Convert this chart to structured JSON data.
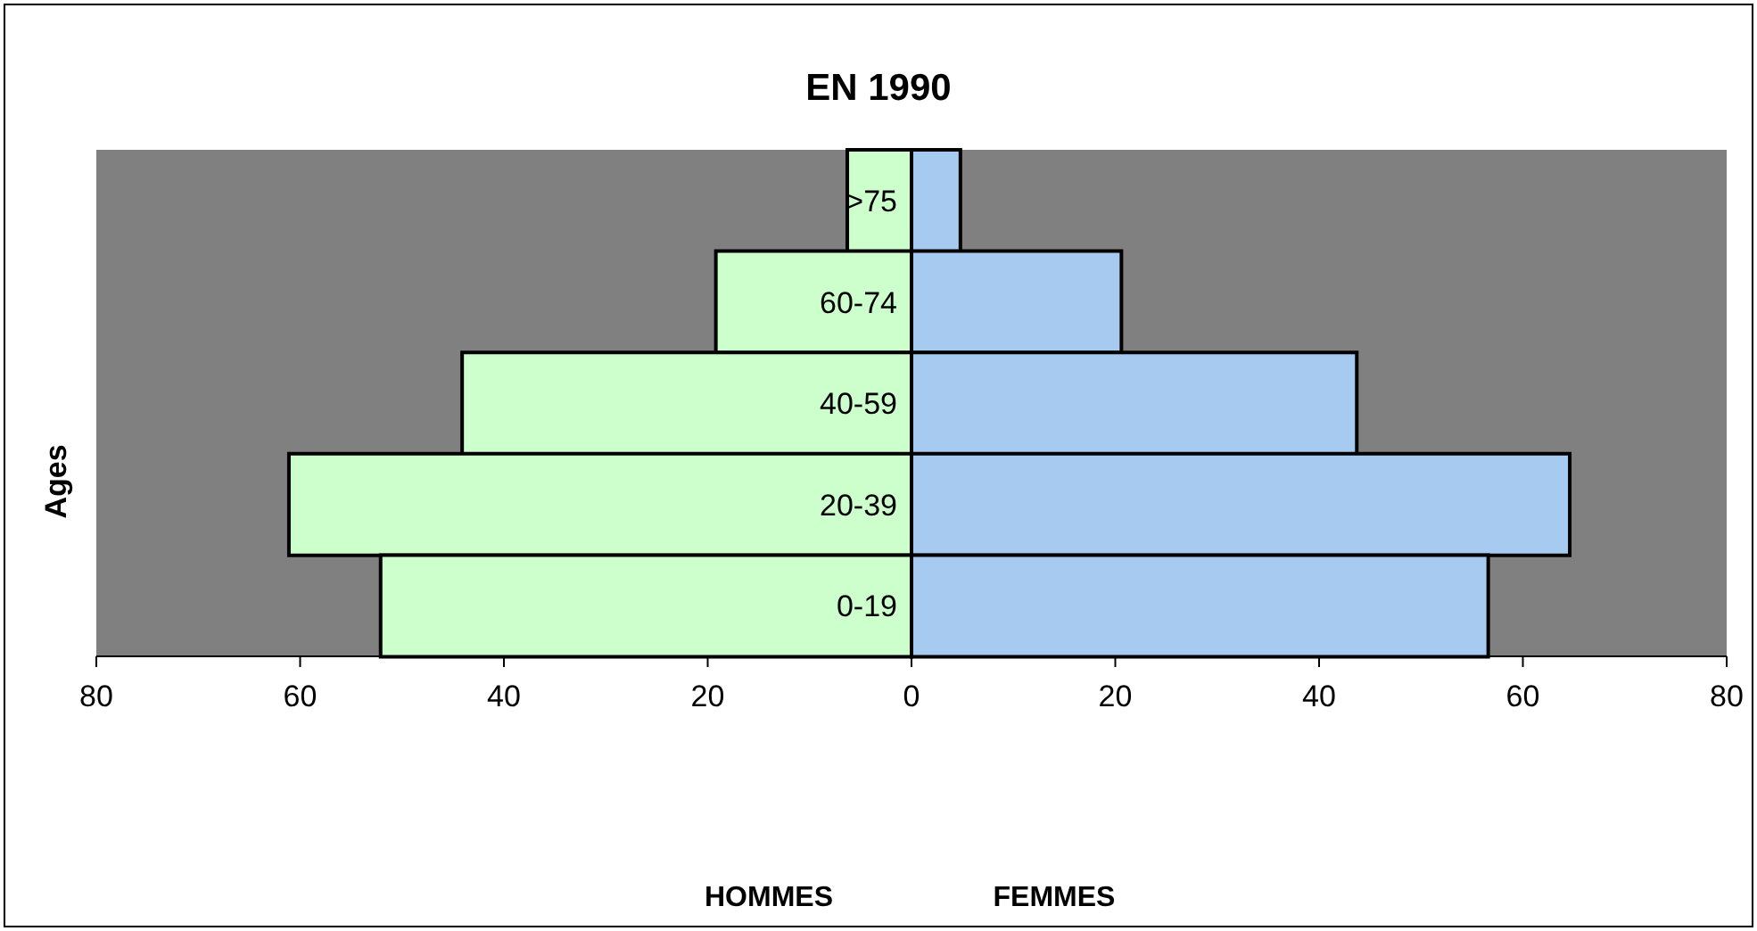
{
  "chart_data": {
    "type": "bar",
    "orientation": "horizontal",
    "stacked": true,
    "title": "EN 1990",
    "ylabel": "Ages",
    "annotations": [
      "HOMMES",
      "FEMMES"
    ],
    "categories": [
      ">75",
      "60-74",
      "40-59",
      "20-39",
      "0-19"
    ],
    "series": [
      {
        "color": "#ccffcc",
        "values": [
          -6.3,
          -19.2,
          -44.1,
          -61.1,
          -52.1
        ]
      },
      {
        "color": "#a6caf0",
        "values": [
          4.8,
          20.6,
          43.7,
          64.6,
          56.6
        ]
      }
    ],
    "xlim": [
      -80,
      80
    ],
    "xticks": [
      {
        "value": -80,
        "label": "80"
      },
      {
        "value": -60,
        "label": "60"
      },
      {
        "value": -40,
        "label": "40"
      },
      {
        "value": -20,
        "label": "20"
      },
      0,
      20,
      40,
      60,
      80
    ],
    "grid": false,
    "legend": false
  }
}
